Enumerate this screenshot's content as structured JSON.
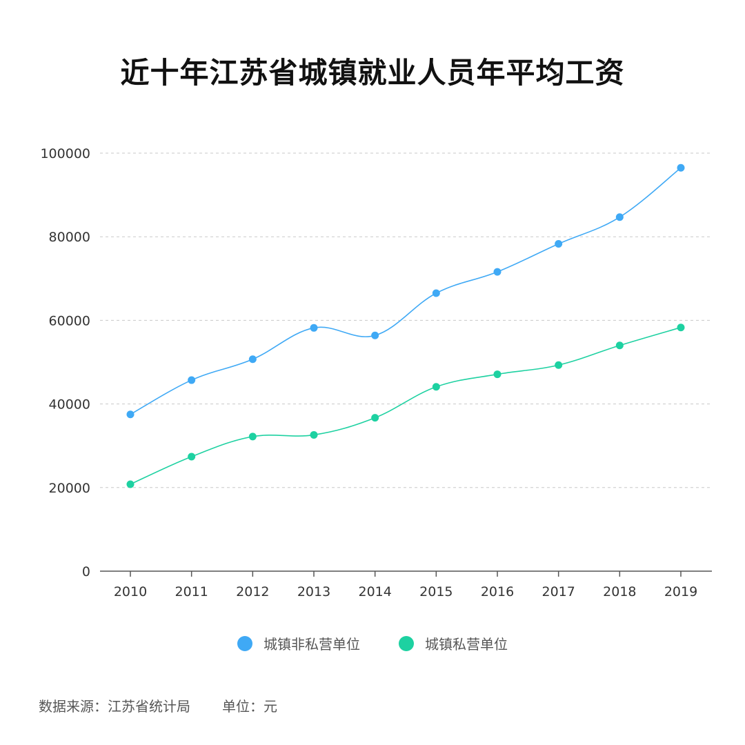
{
  "title": "近十年江苏省城镇就业人员年平均工资",
  "footer": {
    "source": "数据来源：江苏省统计局",
    "unit": "单位：元"
  },
  "chart_data": {
    "type": "line",
    "x": [
      "2010",
      "2011",
      "2012",
      "2013",
      "2014",
      "2015",
      "2016",
      "2017",
      "2018",
      "2019"
    ],
    "series": [
      {
        "name": "城镇非私营单位",
        "color": "#3fa9f5",
        "values": [
          37500,
          45700,
          50700,
          58200,
          56400,
          66500,
          71600,
          78300,
          84700,
          96500
        ]
      },
      {
        "name": "城镇私营单位",
        "color": "#1dd1a1",
        "values": [
          20800,
          27400,
          32200,
          32600,
          36700,
          44100,
          47100,
          49300,
          54000,
          58300
        ]
      }
    ],
    "yticks": [
      "0",
      "20000",
      "40000",
      "60000",
      "80000",
      "100000"
    ],
    "ylim": [
      0,
      100000
    ],
    "grid": true,
    "legend_position": "bottom"
  }
}
